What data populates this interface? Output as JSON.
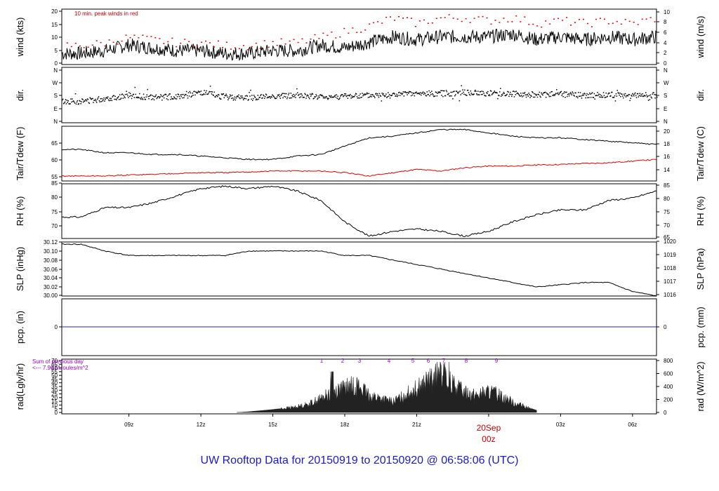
{
  "footer": {
    "title": "UW Rooftop Data for 20150919  to  20150920 @ 06:58:06  (UTC)"
  },
  "x_axis": {
    "ticks": [
      "09z",
      "12z",
      "15z",
      "18z",
      "21z",
      "00z",
      "03z",
      "06z"
    ],
    "date_label": "20Sep",
    "date_tick": "00z"
  },
  "chart_data": [
    {
      "type": "line",
      "panel": "wind",
      "ylabel_left": "wind (kts)",
      "ylabel_right": "wind (m/s)",
      "ylim": [
        0,
        20
      ],
      "yticks_left": [
        "0",
        "5",
        "10",
        "15",
        "20"
      ],
      "yticks_right": [
        "0",
        "2",
        "4",
        "6",
        "8",
        "10"
      ],
      "annotation": "10 min. peak winds in red",
      "series": [
        {
          "name": "wind speed",
          "color": "#000000",
          "x": [
            7.0,
            8.0,
            9.0,
            10.0,
            11.0,
            12.0,
            13.0,
            14.0,
            15.0,
            16.0,
            17.0,
            18.0,
            19.0,
            20.0,
            21.0,
            22.0,
            23.0,
            24.0,
            25.0,
            26.0,
            27.0,
            28.0,
            29.0,
            30.0,
            31.0
          ],
          "y": [
            4,
            5,
            7,
            6,
            5,
            5,
            4,
            4,
            5,
            5,
            7,
            6,
            8,
            10,
            9,
            10,
            10,
            10,
            11,
            9,
            10,
            9,
            10,
            9,
            10
          ]
        },
        {
          "name": "peak winds",
          "color": "#dd0000",
          "x": [
            7.0,
            8.0,
            9.0,
            10.0,
            11.0,
            12.0,
            13.0,
            14.0,
            15.0,
            16.0,
            17.0,
            18.0,
            19.0,
            20.0,
            21.0,
            22.0,
            23.0,
            24.0,
            25.0,
            26.0,
            27.0,
            28.0,
            29.0,
            30.0,
            31.0
          ],
          "y": [
            7,
            8,
            10,
            9,
            8,
            8,
            7,
            7,
            8,
            8,
            10,
            12,
            14,
            17,
            15,
            17,
            17,
            16,
            17,
            15,
            16,
            15,
            16,
            15,
            17
          ]
        }
      ]
    },
    {
      "type": "scatter",
      "panel": "dir",
      "ylabel_left": "dir.",
      "ylabel_right": "dir.",
      "yticks_left": [
        "N",
        "E",
        "S",
        "W",
        "N"
      ],
      "yticks_right": [
        "N",
        "E",
        "S",
        "W",
        "N"
      ],
      "series": [
        {
          "name": "direction",
          "color": "#000000",
          "x": [
            7.0,
            8.0,
            9.0,
            10.0,
            11.0,
            12.0,
            13.0,
            14.0,
            15.0,
            16.0,
            17.0,
            18.0,
            19.0,
            20.0,
            21.0,
            22.0,
            23.0,
            24.0,
            25.0,
            26.0,
            27.0,
            28.0,
            29.0,
            30.0,
            31.0
          ],
          "y": [
            140,
            160,
            180,
            165,
            175,
            200,
            170,
            165,
            175,
            180,
            170,
            175,
            180,
            185,
            190,
            195,
            200,
            195,
            190,
            185,
            190,
            180,
            185,
            180,
            180
          ]
        }
      ]
    },
    {
      "type": "line",
      "panel": "temp",
      "ylabel_left": "Tair/Tdew (F)",
      "ylabel_right": "Tair/Tdew (C)",
      "ylim": [
        53.5,
        70
      ],
      "yticks_left": [
        "55",
        "60",
        "65"
      ],
      "yticks_right": [
        "14",
        "16",
        "18",
        "20"
      ],
      "series": [
        {
          "name": "Tair",
          "color": "#000000",
          "x": [
            7.0,
            8.0,
            9.0,
            10.0,
            11.0,
            12.0,
            13.0,
            14.0,
            15.0,
            16.0,
            17.0,
            18.0,
            19.0,
            20.0,
            21.0,
            22.0,
            23.0,
            24.0,
            25.0,
            26.0,
            27.0,
            28.0,
            29.0,
            30.0,
            31.0
          ],
          "y": [
            63,
            62,
            62,
            61.5,
            61.5,
            61,
            60.5,
            60,
            60,
            61,
            61.5,
            64,
            66.5,
            67,
            68,
            69,
            69,
            68,
            67,
            66.5,
            66.5,
            66,
            65.5,
            65,
            64.5
          ]
        },
        {
          "name": "Tdew",
          "color": "#dd0000",
          "x": [
            7.0,
            8.0,
            9.0,
            10.0,
            11.0,
            12.0,
            13.0,
            14.0,
            15.0,
            16.0,
            17.0,
            18.0,
            19.0,
            20.0,
            21.0,
            22.0,
            23.0,
            24.0,
            25.0,
            26.0,
            27.0,
            28.0,
            29.0,
            30.0,
            31.0
          ],
          "y": [
            55,
            55,
            55.3,
            55.5,
            55.8,
            56,
            56,
            56.2,
            56.5,
            56.5,
            56.5,
            56,
            55,
            56,
            57,
            56.5,
            57.5,
            58,
            58,
            58.3,
            58.5,
            58.8,
            59,
            59.5,
            60
          ]
        }
      ]
    },
    {
      "type": "line",
      "panel": "rh",
      "ylabel_left": "RH (%)",
      "ylabel_right": "RH (%)",
      "ylim": [
        65,
        88
      ],
      "yticks_left": [
        "70",
        "75",
        "80",
        "85"
      ],
      "yticks_right": [
        "65",
        "70",
        "75",
        "80",
        "85"
      ],
      "series": [
        {
          "name": "RH",
          "color": "#000000",
          "x": [
            7.0,
            8.0,
            9.0,
            10.0,
            11.0,
            12.0,
            13.0,
            14.0,
            15.0,
            16.0,
            17.0,
            18.0,
            19.0,
            20.0,
            21.0,
            22.0,
            23.0,
            24.0,
            25.0,
            26.0,
            27.0,
            28.0,
            29.0,
            30.0,
            31.0
          ],
          "y": [
            74,
            78,
            78,
            80,
            83,
            86,
            87,
            86,
            87,
            85,
            81,
            72,
            66,
            68,
            69,
            68,
            66,
            68,
            72,
            75,
            77,
            77,
            81,
            82,
            85
          ]
        }
      ]
    },
    {
      "type": "line",
      "panel": "slp",
      "ylabel_left": "SLP (inHg)",
      "ylabel_right": "SLP (hPa)",
      "ylim": [
        30.0,
        30.12
      ],
      "yticks_left": [
        "30.00",
        "30.02",
        "30.04",
        "30.06",
        "30.08",
        "30.10",
        "30.12"
      ],
      "yticks_right": [
        "1016",
        "1017",
        "1018",
        "1019",
        "1020"
      ],
      "series": [
        {
          "name": "SLP",
          "color": "#000000",
          "x": [
            7.0,
            8.0,
            9.0,
            10.0,
            11.0,
            12.0,
            13.0,
            14.0,
            15.0,
            16.0,
            17.0,
            18.0,
            19.0,
            20.0,
            21.0,
            22.0,
            23.0,
            24.0,
            25.0,
            26.0,
            27.0,
            28.0,
            29.0,
            30.0,
            31.0
          ],
          "y": [
            30.115,
            30.1,
            30.09,
            30.09,
            30.09,
            30.09,
            30.09,
            30.1,
            30.1,
            30.1,
            30.1,
            30.09,
            30.09,
            30.08,
            30.07,
            30.06,
            30.05,
            30.04,
            30.03,
            30.02,
            30.025,
            30.03,
            30.03,
            30.01,
            30.0
          ]
        }
      ]
    },
    {
      "type": "line",
      "panel": "pcp",
      "ylabel_left": "pcp. (in)",
      "ylabel_right": "pcp. (mm)",
      "yticks_left": [
        "0"
      ],
      "yticks_right": [
        "0"
      ],
      "series": [
        {
          "name": "precip",
          "color": "#2222cc",
          "x": [
            7.0,
            8.0,
            9.0,
            10.0,
            11.0,
            12.0,
            13.0,
            14.0,
            15.0,
            16.0,
            17.0,
            18.0,
            19.0,
            20.0,
            21.0,
            22.0,
            23.0,
            24.0,
            25.0,
            26.0,
            27.0,
            28.0,
            29.0,
            30.0,
            31.0
          ],
          "y": [
            0,
            0,
            0,
            0,
            0,
            0,
            0,
            0,
            0,
            0,
            0,
            0,
            0,
            0,
            0,
            0,
            0,
            0,
            0,
            0,
            0,
            0,
            0,
            0,
            0
          ]
        }
      ]
    },
    {
      "type": "area",
      "panel": "rad",
      "ylabel_left": "rad(Lgly/hr)",
      "ylabel_right": "rad (W/m^2)",
      "ylim": [
        0,
        70
      ],
      "yticks_left": [
        "0",
        "5",
        "10",
        "15",
        "20",
        "25",
        "30",
        "35",
        "40",
        "45",
        "50",
        "55",
        "60",
        "65",
        "70"
      ],
      "yticks_right": [
        "0",
        "200",
        "400",
        "600",
        "800"
      ],
      "annotation_lines": [
        "Sum of previous day",
        "<--- 7.90 MJoules/m^2"
      ],
      "markers": [
        "1",
        "2",
        "3",
        "4",
        "5",
        "6",
        "7",
        "8",
        "9"
      ],
      "series": [
        {
          "name": "radiation",
          "color": "#222222",
          "x": [
            13.5,
            14.0,
            15.0,
            16.0,
            16.5,
            17.0,
            17.5,
            18.0,
            18.5,
            19.0,
            19.5,
            20.0,
            20.5,
            21.0,
            21.5,
            22.0,
            22.5,
            23.0,
            23.5,
            24.0,
            24.5,
            25.0,
            25.5,
            26.0,
            27.0,
            28.0,
            29.0,
            30.0,
            31.0
          ],
          "y": [
            0,
            1,
            4,
            8,
            12,
            20,
            30,
            35,
            40,
            25,
            20,
            15,
            25,
            35,
            45,
            55,
            40,
            30,
            25,
            30,
            25,
            15,
            8,
            3,
            0,
            0,
            0,
            0,
            0
          ]
        }
      ]
    }
  ]
}
